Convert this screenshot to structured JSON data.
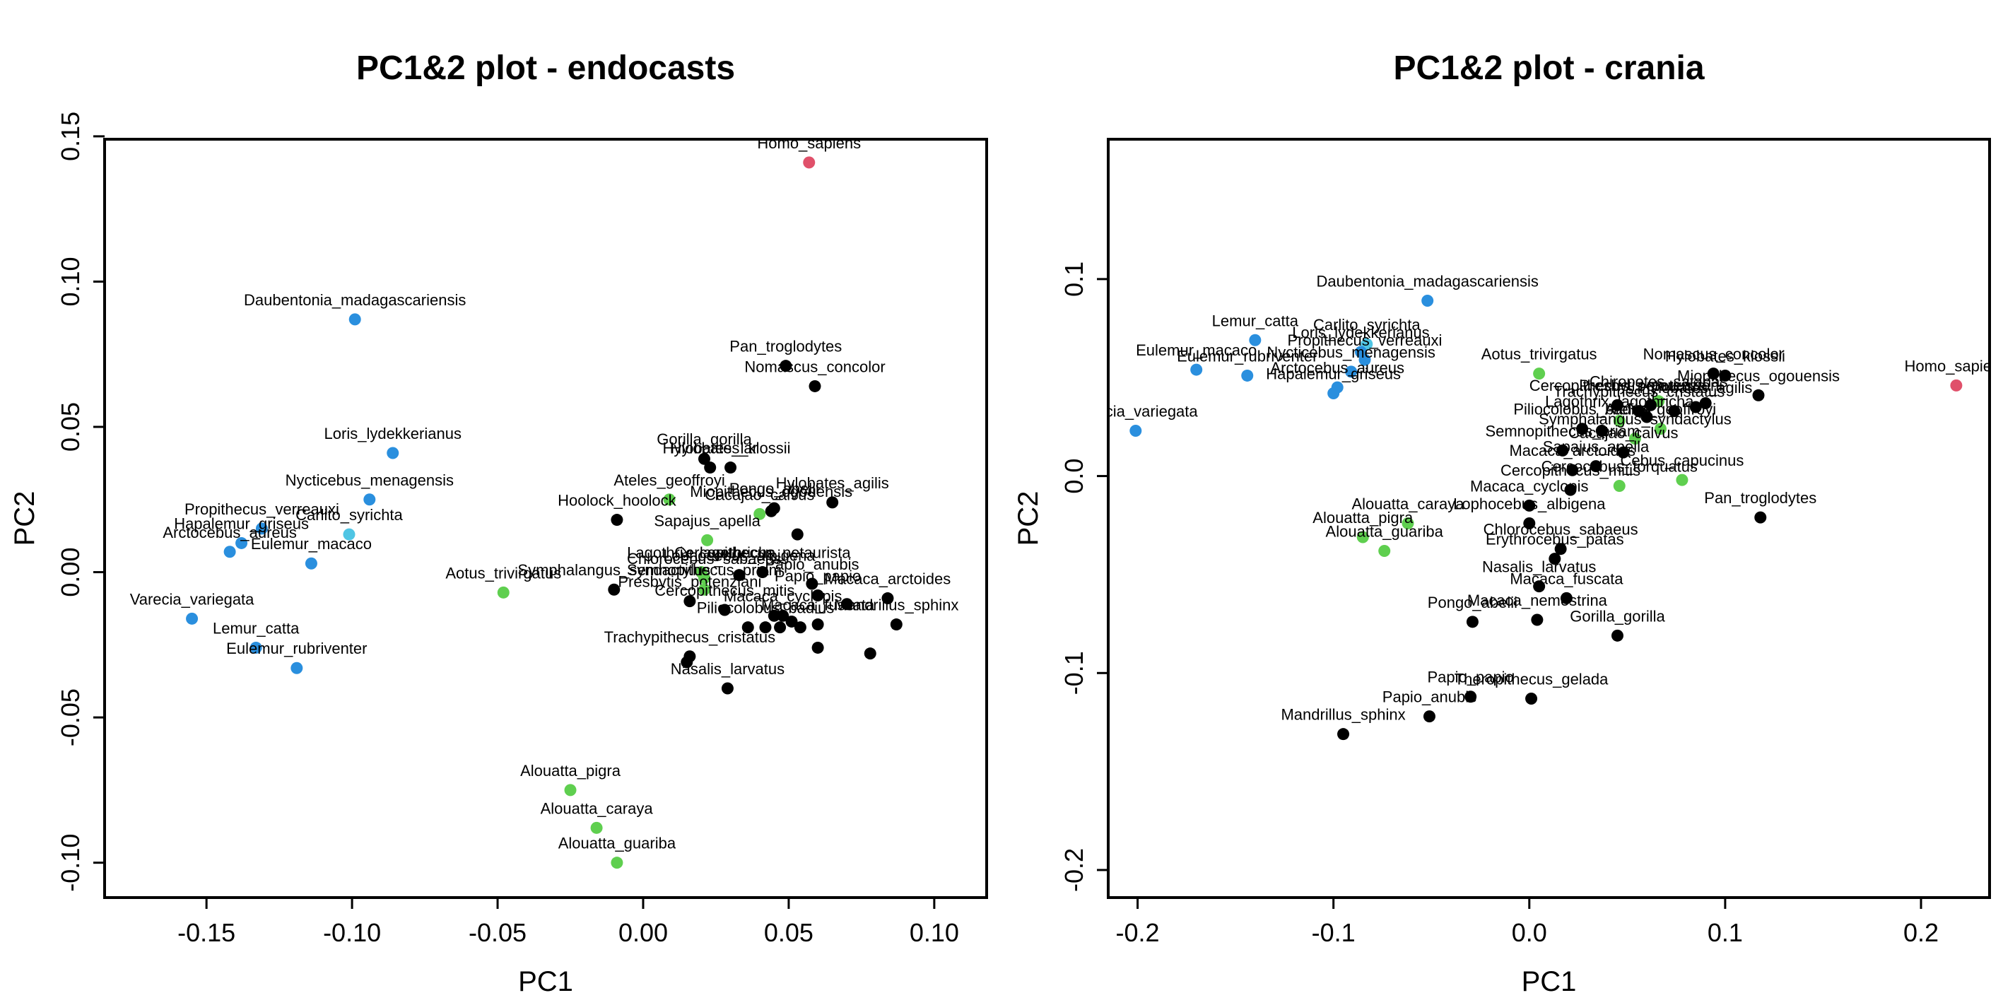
{
  "colors": {
    "black": "#000000",
    "blue": "#2a8fde",
    "lightblue": "#4fc5e4",
    "green": "#5fcf4f",
    "red": "#e0506a"
  },
  "chart_data": [
    {
      "type": "scatter",
      "title": "PC1&2 plot - endocasts",
      "xlabel": "PC1",
      "ylabel": "PC2",
      "xlim": [
        -0.185,
        0.118
      ],
      "ylim": [
        -0.112,
        0.149
      ],
      "xticks": [
        -0.15,
        -0.1,
        -0.05,
        0.0,
        0.05,
        0.1
      ],
      "xtick_labels": [
        "-0.15",
        "-0.10",
        "-0.05",
        "0.00",
        "0.05",
        "0.10"
      ],
      "yticks": [
        -0.1,
        -0.05,
        0.0,
        0.05,
        0.1,
        0.15
      ],
      "ytick_labels": [
        "-0.10",
        "-0.05",
        "0.00",
        "0.05",
        "0.10",
        "0.15"
      ],
      "grid": false,
      "legend": "none",
      "points": [
        {
          "label": "Homo_sapiens",
          "x": 0.057,
          "y": 0.141,
          "color": "red"
        },
        {
          "label": "Daubentonia_madagascariensis",
          "x": -0.099,
          "y": 0.087,
          "color": "blue"
        },
        {
          "label": "Pan_troglodytes",
          "x": 0.049,
          "y": 0.071,
          "color": "black"
        },
        {
          "label": "Nomascus_concolor",
          "x": 0.059,
          "y": 0.064,
          "color": "black"
        },
        {
          "label": "Loris_lydekkerianus",
          "x": -0.086,
          "y": 0.041,
          "color": "blue"
        },
        {
          "label": "Gorilla_gorilla",
          "x": 0.021,
          "y": 0.039,
          "color": "black"
        },
        {
          "label": "Hylobates_lar",
          "x": 0.023,
          "y": 0.036,
          "color": "black"
        },
        {
          "label": "Hylobates_klossii",
          "x": 0.03,
          "y": 0.036,
          "color": "black"
        },
        {
          "label": "Nycticebus_menagensis",
          "x": -0.094,
          "y": 0.025,
          "color": "blue"
        },
        {
          "label": "Ateles_geoffroyi",
          "x": 0.009,
          "y": 0.025,
          "color": "green"
        },
        {
          "label": "Miopithecus_ogouensis",
          "x": 0.044,
          "y": 0.021,
          "color": "black"
        },
        {
          "label": "Cacajao_calvus",
          "x": 0.04,
          "y": 0.02,
          "color": "green"
        },
        {
          "label": "Hylobates_agilis",
          "x": 0.065,
          "y": 0.024,
          "color": "black"
        },
        {
          "label": "Pongo_abelii",
          "x": 0.045,
          "y": 0.022,
          "color": "black"
        },
        {
          "label": "Hoolock_hoolock",
          "x": -0.009,
          "y": 0.018,
          "color": "black"
        },
        {
          "label": "Sapajus_apella",
          "x": 0.022,
          "y": 0.011,
          "color": "green"
        },
        {
          "label": "Propithecus_verreauxi",
          "x": -0.131,
          "y": 0.015,
          "color": "blue"
        },
        {
          "label": "Carlito_syrichta",
          "x": -0.101,
          "y": 0.013,
          "color": "lightblue"
        },
        {
          "label": "Hapalemur_griseus",
          "x": -0.138,
          "y": 0.01,
          "color": "blue"
        },
        {
          "label": "Arctocebus_aureus",
          "x": -0.142,
          "y": 0.007,
          "color": "blue"
        },
        {
          "label": "Eulemur_macaco",
          "x": -0.114,
          "y": 0.003,
          "color": "blue"
        },
        {
          "label": "Lagothrix_lagothricha",
          "x": 0.02,
          "y": 0.0,
          "color": "green"
        },
        {
          "label": "Cercopithecus_petaurista",
          "x": 0.041,
          "y": 0.0,
          "color": "black"
        },
        {
          "label": "Chlorocebus_sabaeus",
          "x": 0.021,
          "y": -0.002,
          "color": "green"
        },
        {
          "label": "Lophocebus_albigena",
          "x": 0.033,
          "y": -0.001,
          "color": "black"
        },
        {
          "label": "Papio_anubis",
          "x": 0.058,
          "y": -0.004,
          "color": "black"
        },
        {
          "label": "Aotus_trivirgatus",
          "x": -0.048,
          "y": -0.007,
          "color": "green"
        },
        {
          "label": "Symphalangus_syndactylus",
          "x": -0.01,
          "y": -0.006,
          "color": "black"
        },
        {
          "label": "Presbytis_potenziani",
          "x": 0.016,
          "y": -0.01,
          "color": "black"
        },
        {
          "label": "Semnopithecus_priam",
          "x": 0.021,
          "y": -0.006,
          "color": "green"
        },
        {
          "label": "Papio_papio",
          "x": 0.06,
          "y": -0.008,
          "color": "black"
        },
        {
          "label": "Macaca_arctoides",
          "x": 0.084,
          "y": -0.009,
          "color": "black"
        },
        {
          "label": "Cercopithecus_mitis",
          "x": 0.028,
          "y": -0.013,
          "color": "black"
        },
        {
          "label": "Macaca_cyclopis",
          "x": 0.048,
          "y": -0.015,
          "color": "black"
        },
        {
          "label": "Varecia_variegata",
          "x": -0.155,
          "y": -0.016,
          "color": "blue"
        },
        {
          "label": "Piliocolobus_badius",
          "x": 0.042,
          "y": -0.019,
          "color": "black"
        },
        {
          "label": "Macaca_fuscata",
          "x": 0.06,
          "y": -0.018,
          "color": "black"
        },
        {
          "label": "Mandrillus_sphinx",
          "x": 0.087,
          "y": -0.018,
          "color": "black"
        },
        {
          "label": "Lemur_catta",
          "x": -0.133,
          "y": -0.026,
          "color": "blue"
        },
        {
          "label": "Trachypithecus_cristatus",
          "x": 0.016,
          "y": -0.029,
          "color": "black"
        },
        {
          "label": "Eulemur_rubriventer",
          "x": -0.119,
          "y": -0.033,
          "color": "blue"
        },
        {
          "label": "Nasalis_larvatus",
          "x": 0.029,
          "y": -0.04,
          "color": "black"
        },
        {
          "label": "Alouatta_pigra",
          "x": -0.025,
          "y": -0.075,
          "color": "green"
        },
        {
          "label": "Alouatta_caraya",
          "x": -0.016,
          "y": -0.088,
          "color": "green"
        },
        {
          "label": "Alouatta_guariba",
          "x": -0.009,
          "y": -0.1,
          "color": "green"
        }
      ],
      "extra_points": [
        {
          "x": 0.053,
          "y": 0.013,
          "color": "black"
        },
        {
          "x": 0.036,
          "y": -0.019,
          "color": "black"
        },
        {
          "x": 0.047,
          "y": -0.019,
          "color": "black"
        },
        {
          "x": 0.051,
          "y": -0.017,
          "color": "black"
        },
        {
          "x": 0.054,
          "y": -0.019,
          "color": "black"
        },
        {
          "x": 0.078,
          "y": -0.028,
          "color": "black"
        },
        {
          "x": 0.06,
          "y": -0.026,
          "color": "black"
        },
        {
          "x": 0.015,
          "y": -0.031,
          "color": "black"
        },
        {
          "x": 0.07,
          "y": -0.011,
          "color": "black"
        },
        {
          "x": 0.045,
          "y": -0.015,
          "color": "black"
        }
      ]
    },
    {
      "type": "scatter",
      "title": "PC1&2 plot - crania",
      "xlabel": "PC1",
      "ylabel": "PC2",
      "xlim": [
        -0.215,
        0.235
      ],
      "ylim": [
        -0.214,
        0.171
      ],
      "xticks": [
        -0.2,
        -0.1,
        0.0,
        0.1,
        0.2
      ],
      "xtick_labels": [
        "-0.2",
        "-0.1",
        "0.0",
        "0.1",
        "0.2"
      ],
      "yticks": [
        -0.2,
        -0.1,
        0.0,
        0.1
      ],
      "ytick_labels": [
        "-0.2",
        "-0.1",
        "0.0",
        "0.1"
      ],
      "grid": false,
      "legend": "none",
      "points": [
        {
          "label": "Daubentonia_madagascariensis",
          "x": -0.052,
          "y": 0.089,
          "color": "blue"
        },
        {
          "label": "Lemur_catta",
          "x": -0.14,
          "y": 0.069,
          "color": "blue"
        },
        {
          "label": "Carlito_syrichta",
          "x": -0.083,
          "y": 0.067,
          "color": "lightblue"
        },
        {
          "label": "Loris_lydekkerianus",
          "x": -0.086,
          "y": 0.063,
          "color": "blue"
        },
        {
          "label": "Propithecus_verreauxi",
          "x": -0.084,
          "y": 0.059,
          "color": "blue"
        },
        {
          "label": "Eulemur_macaco",
          "x": -0.17,
          "y": 0.054,
          "color": "blue"
        },
        {
          "label": "Nycticebus_menagensis",
          "x": -0.091,
          "y": 0.053,
          "color": "blue"
        },
        {
          "label": "Eulemur_rubriventer",
          "x": -0.144,
          "y": 0.051,
          "color": "blue"
        },
        {
          "label": "Arctocebus_aureus",
          "x": -0.098,
          "y": 0.045,
          "color": "blue"
        },
        {
          "label": "Hapalemur_griseus",
          "x": -0.1,
          "y": 0.042,
          "color": "blue"
        },
        {
          "label": "Varecia_variegata",
          "x": -0.201,
          "y": 0.023,
          "color": "blue"
        },
        {
          "label": "Homo_sapiens",
          "x": 0.218,
          "y": 0.046,
          "color": "red"
        },
        {
          "label": "Aotus_trivirgatus",
          "x": 0.005,
          "y": 0.052,
          "color": "green"
        },
        {
          "label": "Nomascus_concolor",
          "x": 0.094,
          "y": 0.052,
          "color": "black"
        },
        {
          "label": "Hylobates_klossii",
          "x": 0.1,
          "y": 0.051,
          "color": "black"
        },
        {
          "label": "Miopithecus_ogouensis",
          "x": 0.117,
          "y": 0.041,
          "color": "black"
        },
        {
          "label": "Chiropotes_satanas",
          "x": 0.066,
          "y": 0.038,
          "color": "green"
        },
        {
          "label": "Presbytis_potenziani",
          "x": 0.062,
          "y": 0.036,
          "color": "black"
        },
        {
          "label": "Hylobates_agilis",
          "x": 0.085,
          "y": 0.035,
          "color": "black"
        },
        {
          "label": "Cercopithecus_petaurista",
          "x": 0.045,
          "y": 0.036,
          "color": "black"
        },
        {
          "label": "Trachypithecus_cristatus",
          "x": 0.056,
          "y": 0.033,
          "color": "black"
        },
        {
          "label": "Lagothrix_lagothricha",
          "x": 0.046,
          "y": 0.028,
          "color": "green"
        },
        {
          "label": "Ateles_geoffroyi",
          "x": 0.067,
          "y": 0.024,
          "color": "green"
        },
        {
          "label": "Piliocolobus_badius",
          "x": 0.027,
          "y": 0.024,
          "color": "black"
        },
        {
          "label": "Symphalangus_syndactylus",
          "x": 0.054,
          "y": 0.019,
          "color": "green"
        },
        {
          "label": "Semnopithecus_priam",
          "x": 0.017,
          "y": 0.013,
          "color": "black"
        },
        {
          "label": "Cacajao_calvus",
          "x": 0.048,
          "y": 0.012,
          "color": "black"
        },
        {
          "label": "Sapajus_apella",
          "x": 0.034,
          "y": 0.005,
          "color": "black"
        },
        {
          "label": "Cebus_capucinus",
          "x": 0.078,
          "y": -0.002,
          "color": "green"
        },
        {
          "label": "Macaca_arctoides",
          "x": 0.022,
          "y": 0.003,
          "color": "black"
        },
        {
          "label": "Cercocebus_torquatus",
          "x": 0.046,
          "y": -0.005,
          "color": "green"
        },
        {
          "label": "Cercopithecus_mitis",
          "x": 0.021,
          "y": -0.007,
          "color": "black"
        },
        {
          "label": "Pan_troglodytes",
          "x": 0.118,
          "y": -0.021,
          "color": "black"
        },
        {
          "label": "Alouatta_caraya",
          "x": -0.062,
          "y": -0.024,
          "color": "green"
        },
        {
          "label": "Macaca_cyclopis",
          "x": 0.0,
          "y": -0.015,
          "color": "black"
        },
        {
          "label": "Lophocebus_albigena",
          "x": 0.0,
          "y": -0.024,
          "color": "black"
        },
        {
          "label": "Alouatta_pigra",
          "x": -0.085,
          "y": -0.031,
          "color": "green"
        },
        {
          "label": "Alouatta_guariba",
          "x": -0.074,
          "y": -0.038,
          "color": "green"
        },
        {
          "label": "Chlorocebus_sabaeus",
          "x": 0.016,
          "y": -0.037,
          "color": "black"
        },
        {
          "label": "Erythrocebus_patas",
          "x": 0.013,
          "y": -0.042,
          "color": "black"
        },
        {
          "label": "Nasalis_larvatus",
          "x": 0.005,
          "y": -0.056,
          "color": "black"
        },
        {
          "label": "Macaca_fuscata",
          "x": 0.019,
          "y": -0.062,
          "color": "black"
        },
        {
          "label": "Pongo_abelii",
          "x": -0.029,
          "y": -0.074,
          "color": "black"
        },
        {
          "label": "Macaca_nemestrina",
          "x": 0.004,
          "y": -0.073,
          "color": "black"
        },
        {
          "label": "Gorilla_gorilla",
          "x": 0.045,
          "y": -0.081,
          "color": "black"
        },
        {
          "label": "Papio_papio",
          "x": -0.03,
          "y": -0.112,
          "color": "black"
        },
        {
          "label": "Theropithecus_gelada",
          "x": 0.001,
          "y": -0.113,
          "color": "black"
        },
        {
          "label": "Papio_anubis",
          "x": -0.051,
          "y": -0.122,
          "color": "black"
        },
        {
          "label": "Mandrillus_sphinx",
          "x": -0.095,
          "y": -0.131,
          "color": "black"
        }
      ],
      "extra_points": [
        {
          "x": 0.074,
          "y": 0.033,
          "color": "black"
        },
        {
          "x": 0.09,
          "y": 0.037,
          "color": "black"
        },
        {
          "x": 0.037,
          "y": 0.023,
          "color": "black"
        },
        {
          "x": 0.06,
          "y": 0.03,
          "color": "black"
        }
      ]
    }
  ]
}
